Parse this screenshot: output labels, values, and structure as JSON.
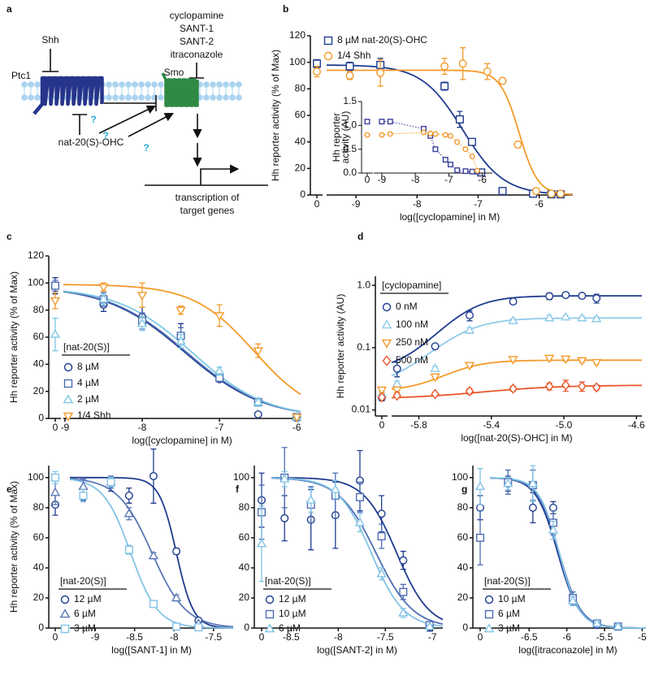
{
  "diagram": {
    "label": "a",
    "shh": "Shh",
    "ptc1": "Ptc1",
    "smo": "Smo",
    "inhibitors": [
      "cyclopamine",
      "SANT-1",
      "SANT-2",
      "itraconazole"
    ],
    "questions": [
      "?",
      "?",
      "?"
    ],
    "ligand": "nat-20(S)-OHC",
    "output": [
      "transcription of",
      "target genes"
    ]
  },
  "chart_data": [
    {
      "label": "b",
      "type": "scatter",
      "xlabel": "log([cyclopamine] in M)",
      "ylabel": "Hh reporter activity (% of Max)",
      "xlim": [
        -9.48,
        -5.45
      ],
      "ylim": [
        0,
        120
      ],
      "xticks": [
        -9,
        -8,
        -7,
        -6
      ],
      "yticks": [
        0,
        20,
        40,
        60,
        80,
        100,
        120
      ],
      "x_zero_tick": 0,
      "series": [
        {
          "name": "8 µM nat-20(S)-OHC",
          "color": "#1f3c8f",
          "marker": "square",
          "zero_value": 99,
          "zero_error": 3,
          "x": [
            -9.1,
            -8.6,
            -7.55,
            -7.3,
            -7.1,
            -6.95,
            -6.6,
            -6.1,
            -5.8,
            -5.65
          ],
          "values": [
            97,
            98,
            82,
            57,
            40,
            17,
            3,
            1,
            0.5,
            0.5
          ],
          "errors": [
            3,
            5,
            3,
            6,
            2,
            1,
            1,
            1,
            1,
            1
          ],
          "fit": {
            "bottom": 0,
            "top": 98,
            "logec50": -7.25,
            "hill": -1.3
          }
        },
        {
          "name": "1/4 Shh",
          "color": "#f39a2b",
          "marker": "circle",
          "zero_value": 93,
          "zero_error": 4,
          "x": [
            -9.1,
            -8.6,
            -7.55,
            -7.25,
            -6.85,
            -6.6,
            -6.35,
            -6.05,
            -5.8,
            -5.65
          ],
          "values": [
            90,
            92,
            97,
            99,
            93,
            86,
            38,
            3,
            1,
            1
          ],
          "errors": [
            3,
            10,
            6,
            12,
            6,
            2,
            2,
            2,
            1,
            1
          ],
          "fit": {
            "bottom": 0,
            "top": 94,
            "logec50": -6.33,
            "hill": -2.8
          }
        }
      ]
    },
    {
      "type": "line",
      "ylabel": [
        "Hh reporter",
        "activity (AU)"
      ],
      "xlim": [
        -9.24,
        -5.7
      ],
      "ylim": [
        0,
        1.5
      ],
      "xticks": [
        -9,
        -8,
        -7,
        -6
      ],
      "yticks": [
        {
          "value": 0,
          "label": "0.0"
        },
        0.5,
        {
          "value": 1,
          "label": "1.0"
        },
        1.5
      ],
      "x_zero_tick": 0,
      "series": [
        {
          "color": "#3b3f9e",
          "marker": "square",
          "zero_value": 1.08,
          "x": [
            -9.0,
            -8.75,
            -7.75,
            -7.55,
            -7.4,
            -7.1,
            -6.95,
            -6.75,
            -6.5,
            -6.3,
            -6.15
          ],
          "values": [
            1.08,
            1.08,
            0.93,
            0.78,
            0.5,
            0.28,
            0.18,
            0.06,
            0.04,
            0.03,
            0.03
          ]
        },
        {
          "color": "#f39a2b",
          "marker": "circle",
          "zero_value": 0.8,
          "x": [
            -9.0,
            -8.75,
            -7.75,
            -7.55,
            -7.4,
            -7.1,
            -6.95,
            -6.75,
            -6.5,
            -6.3,
            -6.15
          ],
          "values": [
            0.8,
            0.82,
            0.85,
            0.83,
            0.82,
            0.8,
            0.78,
            0.65,
            0.5,
            0.35,
            0.05
          ]
        }
      ]
    },
    {
      "label": "c",
      "type": "scatter",
      "xlabel": "log([cyclopamine] in M)",
      "ylabel": "Hh reporter activity (% of Max)",
      "legend_title": "[nat-20(S)]",
      "xlim": [
        -9.02,
        -5.95
      ],
      "ylim": [
        0,
        120
      ],
      "xticks": [
        -9,
        -8,
        -7,
        -6
      ],
      "yticks": [
        0,
        20,
        40,
        60,
        80,
        100,
        120
      ],
      "x_zero_tick": 0,
      "series": [
        {
          "name": "8 µM",
          "color": "#1f3c8f",
          "marker": "circle",
          "zero_value": 98,
          "zero_error": 6,
          "x": [
            -8.5,
            -8.0,
            -7.5,
            -7.0,
            -6.5,
            -6.0
          ],
          "values": [
            84,
            75,
            61,
            29,
            3,
            0.5
          ],
          "errors": [
            5,
            7,
            9,
            2,
            1,
            1
          ],
          "fit": {
            "bottom": 0,
            "top": 98,
            "logec50": -7.45,
            "hill": -0.85
          }
        },
        {
          "name": "4 µM",
          "color": "#4d6db3",
          "marker": "square",
          "zero_value": 98,
          "zero_error": 4,
          "x": [
            -8.5,
            -8.0,
            -7.5,
            -7.0,
            -6.5,
            -6.0
          ],
          "values": [
            88,
            72,
            61,
            30,
            12,
            1
          ],
          "errors": [
            5,
            6,
            6,
            2,
            3,
            1
          ],
          "fit": {
            "bottom": 0,
            "top": 98,
            "logec50": -7.43,
            "hill": -0.85
          }
        },
        {
          "name": "2 µM",
          "color": "#7fc8e4",
          "marker": "triangle",
          "zero_value": 62,
          "zero_error": 12,
          "x": [
            -8.5,
            -8.0,
            -7.5,
            -7.0,
            -6.5,
            -6.0
          ],
          "values": [
            88,
            70,
            57,
            35,
            12,
            1
          ],
          "errors": [
            4,
            5,
            5,
            3,
            3,
            1
          ],
          "fit": {
            "bottom": 0,
            "top": 97,
            "logec50": -7.35,
            "hill": -0.9
          }
        },
        {
          "name": "1/4 Shh",
          "color": "#f39a2b",
          "marker": "triangle-down",
          "zero_value": 87,
          "zero_error": 6,
          "x": [
            -8.5,
            -8.0,
            -7.5,
            -7.0,
            -6.5,
            -6.0
          ],
          "values": [
            97,
            91,
            80,
            76,
            50,
            1
          ],
          "errors": [
            3,
            9,
            3,
            8,
            5,
            1
          ],
          "fit": {
            "bottom": 0,
            "top": 99,
            "logec50": -6.55,
            "hill": -1.1
          }
        }
      ]
    },
    {
      "label": "d",
      "type": "scatter",
      "log": true,
      "xlabel": "log([nat-20(S)-OHC] in M)",
      "ylabel": "Hh reporter activity (AU)",
      "legend_title": "[cyclopamine]",
      "xlim": [
        -5.95,
        -4.57
      ],
      "ylim": [
        0.008,
        1.4
      ],
      "xticks": [
        -5.8,
        -5.4,
        {
          "value": -5,
          "label": "-5.0"
        },
        -4.6
      ],
      "yticks": [
        0.01,
        0.1,
        {
          "value": 1,
          "label": "1.0"
        }
      ],
      "x_zero_tick": 0,
      "series": [
        {
          "name": "0 nM",
          "color": "#1f3c8f",
          "marker": "circle",
          "zero_value": 0.016,
          "zero_error": 0.002,
          "x": [
            -5.92,
            -5.71,
            -5.52,
            -5.28,
            -5.08,
            -4.99,
            -4.9,
            -4.82
          ],
          "values": [
            0.046,
            0.105,
            0.33,
            0.55,
            0.67,
            0.7,
            0.68,
            0.62
          ],
          "errors": [
            0.012,
            0.01,
            0.06,
            0.05,
            0.08,
            0.05,
            0.05,
            0.1
          ],
          "fit": {
            "bottom": 0.042,
            "top": 0.68,
            "logec50": -5.55,
            "hill": 4
          }
        },
        {
          "name": "100 nM",
          "color": "#8fcbea",
          "marker": "triangle",
          "zero_value": 0.018,
          "zero_error": 0.002,
          "x": [
            -5.92,
            -5.71,
            -5.52,
            -5.28,
            -5.08,
            -4.99,
            -4.9,
            -4.82
          ],
          "values": [
            0.026,
            0.046,
            0.19,
            0.27,
            0.3,
            0.31,
            0.3,
            0.29
          ],
          "errors": [
            0.003,
            0.004,
            0.02,
            0.02,
            0.03,
            0.02,
            0.02,
            0.02
          ],
          "fit": {
            "bottom": 0.022,
            "top": 0.3,
            "logec50": -5.58,
            "hill": 3.5
          }
        },
        {
          "name": "250 nM",
          "color": "#f39a2b",
          "marker": "triangle-down",
          "zero_value": 0.021,
          "zero_error": 0.002,
          "x": [
            -5.92,
            -5.71,
            -5.52,
            -5.28,
            -5.08,
            -4.99,
            -4.9,
            -4.82
          ],
          "values": [
            0.021,
            0.034,
            0.052,
            0.065,
            0.068,
            0.066,
            0.062,
            0.058
          ],
          "errors": [
            0.002,
            0.003,
            0.004,
            0.005,
            0.006,
            0.005,
            0.004,
            0.004
          ],
          "fit": {
            "bottom": 0.02,
            "top": 0.063,
            "logec50": -5.6,
            "hill": 4
          }
        },
        {
          "name": "500 nM",
          "color": "#e8562a",
          "marker": "diamond",
          "zero_value": 0.016,
          "zero_error": 0.001,
          "x": [
            -5.92,
            -5.71,
            -5.52,
            -5.28,
            -5.08,
            -4.99,
            -4.9,
            -4.82
          ],
          "values": [
            0.017,
            0.018,
            0.02,
            0.022,
            0.024,
            0.025,
            0.024,
            0.023
          ],
          "errors": [
            0.001,
            0.001,
            0.002,
            0.002,
            0.003,
            0.005,
            0.004,
            0.002
          ],
          "fit": {
            "bottom": 0.015,
            "top": 0.025,
            "logec50": -5.4,
            "hill": 2
          }
        }
      ]
    },
    {
      "label": "e",
      "type": "scatter",
      "xlabel": "log([SANT-1] in M)",
      "ylabel": "Hh reporter activity (% of Max)",
      "legend_title": "[nat-20(S)]",
      "xlim": [
        -9.32,
        -7.25
      ],
      "ylim": [
        0,
        108
      ],
      "xticks": [
        -9,
        -8.5,
        -8,
        -7.5
      ],
      "yticks": [
        0,
        20,
        40,
        60,
        80,
        100
      ],
      "x_zero_tick": 0,
      "series": [
        {
          "name": "12 µM",
          "color": "#1f3c8f",
          "marker": "circle",
          "zero_value": 82,
          "zero_error": 7,
          "x": [
            -9.15,
            -8.8,
            -8.57,
            -8.26,
            -7.97,
            -7.69
          ],
          "values": [
            87,
            96,
            88,
            101,
            51,
            5
          ],
          "errors": [
            3,
            5,
            5,
            18,
            2,
            1
          ],
          "fit": {
            "bottom": 0,
            "top": 100,
            "logec50": -7.97,
            "hill": -4
          }
        },
        {
          "name": "6 µM",
          "color": "#5b77b5",
          "marker": "triangle",
          "zero_value": 90,
          "zero_error": 8,
          "x": [
            -9.15,
            -8.8,
            -8.57,
            -8.26,
            -7.97,
            -7.69
          ],
          "values": [
            94,
            97,
            76,
            48,
            20,
            3
          ],
          "errors": [
            5,
            4,
            4,
            2,
            2,
            1
          ],
          "fit": {
            "bottom": 0,
            "top": 100,
            "logec50": -8.28,
            "hill": -2
          }
        },
        {
          "name": "3 µM",
          "color": "#82c3e6",
          "marker": "square",
          "zero_value": 100,
          "zero_error": 4,
          "x": [
            -9.15,
            -8.8,
            -8.57,
            -8.26,
            -7.97,
            -7.69
          ],
          "values": [
            88,
            97,
            52,
            16,
            1,
            0.5
          ],
          "errors": [
            4,
            3,
            3,
            1,
            1,
            1
          ],
          "fit": {
            "bottom": 0,
            "top": 100,
            "logec50": -8.55,
            "hill": -2.5
          }
        }
      ]
    },
    {
      "label": "f",
      "type": "scatter",
      "xlabel": "log([SANT-2] in M)",
      "legend_title": "[nat-20(S)]",
      "xlim": [
        -8.71,
        -6.89
      ],
      "ylim": [
        0,
        108
      ],
      "xticks": [
        -8.5,
        -8,
        -7.5,
        -7
      ],
      "yticks": [
        0,
        20,
        40,
        60,
        80,
        100
      ],
      "x_zero_tick": 0,
      "series": [
        {
          "name": "12 µM",
          "color": "#1f3c8f",
          "marker": "circle",
          "zero_value": 85,
          "zero_error": 18,
          "x": [
            -8.57,
            -8.29,
            -8.03,
            -7.77,
            -7.54,
            -7.31,
            -7.03
          ],
          "values": [
            73,
            72,
            75,
            98,
            76,
            45,
            1
          ],
          "errors": [
            15,
            20,
            22,
            20,
            12,
            6,
            3
          ],
          "fit": {
            "bottom": 0,
            "top": 100,
            "logec50": -7.38,
            "hill": -2.5
          }
        },
        {
          "name": "10 µM",
          "color": "#4d6db3",
          "marker": "square",
          "zero_value": 77,
          "zero_error": 18,
          "x": [
            -8.57,
            -8.29,
            -8.03,
            -7.77,
            -7.54,
            -7.31,
            -7.03
          ],
          "values": [
            100,
            82,
            88,
            87,
            61,
            24,
            2
          ],
          "errors": [
            20,
            12,
            15,
            10,
            8,
            5,
            2
          ],
          "fit": {
            "bottom": 0,
            "top": 100,
            "logec50": -7.6,
            "hill": -2.2
          }
        },
        {
          "name": "6 µM",
          "color": "#82c3e6",
          "marker": "triangle",
          "zero_value": 56,
          "zero_error": 25,
          "x": [
            -8.57,
            -8.29,
            -8.03,
            -7.77,
            -7.54,
            -7.31,
            -7.03
          ],
          "values": [
            99,
            85,
            92,
            70,
            36,
            10,
            1
          ],
          "errors": [
            5,
            8,
            6,
            6,
            4,
            3,
            1
          ],
          "fit": {
            "bottom": 0,
            "top": 100,
            "logec50": -7.65,
            "hill": -2.5
          }
        }
      ]
    },
    {
      "label": "g",
      "type": "scatter",
      "xlabel": "log([itraconazole] in M)",
      "legend_title": "[nat-20(S)]",
      "xlim": [
        -7.02,
        -4.95
      ],
      "ylim": [
        0,
        108
      ],
      "xticks": [
        -6.5,
        -6,
        -5.5,
        -5
      ],
      "yticks": [
        0,
        20,
        40,
        60,
        80,
        100
      ],
      "x_zero_tick": 0,
      "series": [
        {
          "name": "10 µM",
          "color": "#1f3c8f",
          "marker": "circle",
          "zero_value": 80,
          "zero_error": 8,
          "x": [
            -6.78,
            -6.45,
            -6.18,
            -5.92,
            -5.6,
            -5.32
          ],
          "values": [
            96,
            80,
            80,
            18,
            2,
            1
          ],
          "errors": [
            5,
            10,
            4,
            3,
            1,
            1
          ],
          "fit": {
            "bottom": 0,
            "top": 100,
            "logec50": -6.12,
            "hill": -3
          }
        },
        {
          "name": "6 µM",
          "color": "#4d6db3",
          "marker": "square",
          "zero_value": 60,
          "zero_error": 18,
          "x": [
            -6.78,
            -6.45,
            -6.18,
            -5.92,
            -5.6,
            -5.32
          ],
          "values": [
            97,
            95,
            70,
            20,
            3,
            1
          ],
          "errors": [
            8,
            10,
            8,
            4,
            1,
            1
          ],
          "fit": {
            "bottom": 0,
            "top": 100,
            "logec50": -6.1,
            "hill": -3
          }
        },
        {
          "name": "3 µM",
          "color": "#82c3e6",
          "marker": "triangle",
          "zero_value": 94,
          "zero_error": 12,
          "x": [
            -6.78,
            -6.45,
            -6.18,
            -5.92,
            -5.6,
            -5.32
          ],
          "values": [
            96,
            96,
            65,
            18,
            3,
            1
          ],
          "errors": [
            4,
            12,
            6,
            3,
            1,
            1
          ],
          "fit": {
            "bottom": 0,
            "top": 100,
            "logec50": -6.1,
            "hill": -3.2
          }
        }
      ]
    }
  ]
}
